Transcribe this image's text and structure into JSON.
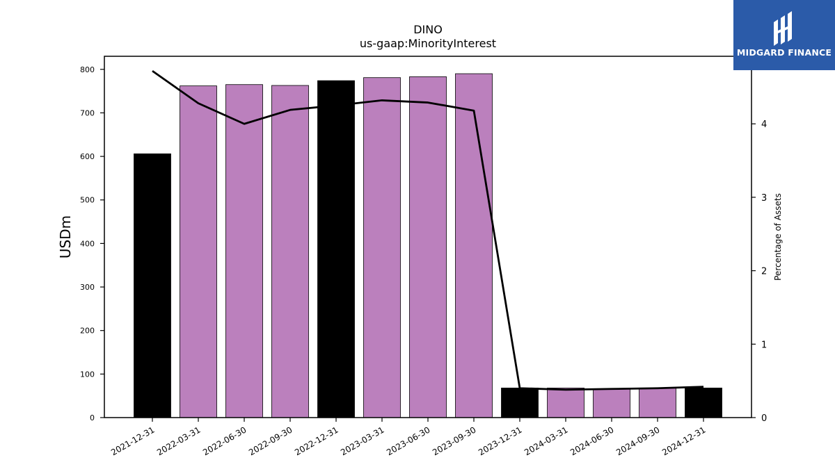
{
  "chart_data": {
    "type": "bar",
    "title": "DINO",
    "subtitle": "us-gaap:MinorityInterest",
    "ylabel": "USDm",
    "y2label": "Percentage of Assets",
    "categories": [
      "2021-12-31",
      "2022-03-31",
      "2022-06-30",
      "2022-09-30",
      "2022-12-31",
      "2023-03-31",
      "2023-06-30",
      "2023-09-30",
      "2023-12-31",
      "2024-03-31",
      "2024-06-30",
      "2024-09-30",
      "2024-12-31"
    ],
    "values": [
      606,
      762,
      765,
      763,
      774,
      781,
      783,
      790,
      68,
      68,
      66,
      68,
      68
    ],
    "bar_colors": [
      "#000000",
      "#bb80bd",
      "#bb80bd",
      "#bb80bd",
      "#000000",
      "#bb80bd",
      "#bb80bd",
      "#bb80bd",
      "#000000",
      "#bb80bd",
      "#bb80bd",
      "#bb80bd",
      "#000000"
    ],
    "line_series": {
      "values": [
        4.72,
        4.28,
        4.0,
        4.19,
        4.25,
        4.32,
        4.29,
        4.18,
        0.4,
        0.38,
        0.39,
        0.4,
        0.42
      ],
      "color": "#000000"
    },
    "ylim": [
      0,
      830
    ],
    "y2lim": [
      0,
      4.92
    ],
    "yticks": [
      0,
      100,
      200,
      300,
      400,
      500,
      600,
      700,
      800
    ],
    "y2ticks": [
      0,
      1,
      2,
      3,
      4
    ],
    "grid": false,
    "legend": "none"
  },
  "logo": {
    "text": "MIDGARD FINANCE",
    "background": "#2b5ba9"
  }
}
